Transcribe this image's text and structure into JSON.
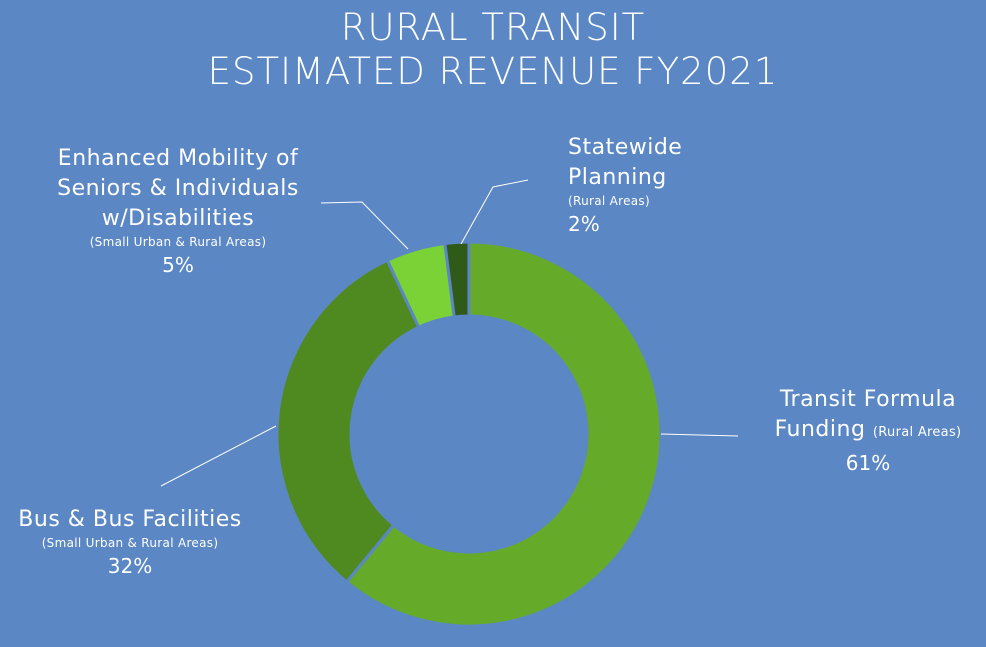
{
  "title_line1": "RURAL TRANSIT",
  "title_line2": "ESTIMATED REVENUE FY2021",
  "chart_data": {
    "type": "pie",
    "style": "donut",
    "title": "RURAL TRANSIT ESTIMATED REVENUE FY2021",
    "slices": [
      {
        "label": "Transit Formula Funding",
        "note": "(Rural Areas)",
        "value": 61,
        "display": "61%",
        "color": "#65ab29"
      },
      {
        "label": "Bus & Bus Facilities",
        "note": "(Small Urban & Rural Areas)",
        "value": 32,
        "display": "32%",
        "color": "#4f8a20"
      },
      {
        "label": "Enhanced Mobility of Seniors & Individuals w/Disabilities",
        "note": "(Small Urban & Rural Areas)",
        "value": 5,
        "display": "5%",
        "color": "#7ad237"
      },
      {
        "label": "Statewide Planning",
        "note": "(Rural Areas)",
        "value": 2,
        "display": "2%",
        "color": "#2f5a18"
      }
    ]
  },
  "labels": {
    "transit": {
      "line1": "Transit Formula",
      "line2": "Funding",
      "note": "(Rural Areas)",
      "pct": "61%"
    },
    "bus": {
      "line1": "Bus & Bus Facilities",
      "note": "(Small Urban & Rural Areas)",
      "pct": "32%"
    },
    "mobility": {
      "line1": "Enhanced Mobility of",
      "line2": "Seniors & Individuals",
      "line3": "w/Disabilities",
      "note": "(Small Urban & Rural Areas)",
      "pct": "5%"
    },
    "planning": {
      "line1": "Statewide",
      "line2": "Planning",
      "note": "(Rural Areas)",
      "pct": "2%"
    }
  }
}
